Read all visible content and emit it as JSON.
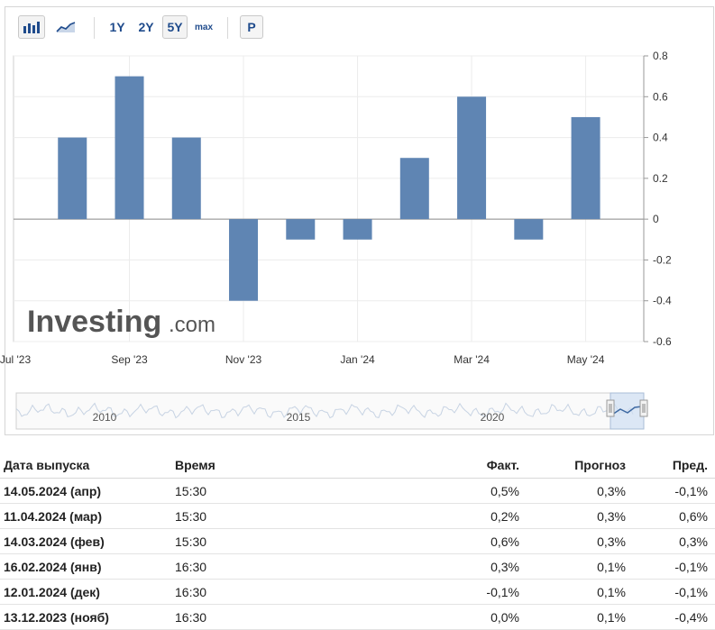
{
  "toolbar": {
    "periods": [
      "1Y",
      "2Y",
      "5Y",
      "max"
    ],
    "active_period": "5Y",
    "p_button": "P",
    "icons": [
      "bar-chart-icon",
      "area-chart-icon"
    ]
  },
  "watermark": {
    "brand": "Investing",
    "suffix": ".com"
  },
  "chart_data": {
    "type": "bar",
    "categories": [
      "Aug 2023",
      "Sep 2023",
      "Oct 2023",
      "Nov 2023",
      "Dec 2023",
      "Jan 2024",
      "Feb 2024",
      "Mar 2024",
      "Apr 2024",
      "May 2024"
    ],
    "values": [
      0.4,
      0.7,
      0.4,
      -0.4,
      -0.1,
      -0.1,
      0.3,
      0.6,
      -0.1,
      0.5
    ],
    "x_tick_labels": [
      "Jul '23",
      "Sep '23",
      "Nov '23",
      "Jan '24",
      "Mar '24",
      "May '24"
    ],
    "y_ticks": [
      0.8,
      0.6,
      0.4,
      0.2,
      0,
      -0.2,
      -0.4,
      -0.6
    ],
    "ylim": [
      -0.6,
      0.8
    ],
    "y_axis_side": "right",
    "bar_color": "#5f85b3",
    "grid": true,
    "legend": "none",
    "navigator_labels": [
      "2010",
      "2015",
      "2020"
    ]
  },
  "table": {
    "headers": [
      "Дата выпуска",
      "Время",
      "Факт.",
      "Прогноз",
      "Пред."
    ],
    "rows": [
      {
        "date": "14.05.2024 (апр)",
        "time": "15:30",
        "actual": "0,5%",
        "actual_trend": "pos",
        "forecast": "0,3%",
        "previous": "-0,1%",
        "previous_trend": "neg"
      },
      {
        "date": "11.04.2024 (мар)",
        "time": "15:30",
        "actual": "0,2%",
        "actual_trend": "neg",
        "forecast": "0,3%",
        "previous": "0,6%",
        "previous_trend": "neu"
      },
      {
        "date": "14.03.2024 (фев)",
        "time": "15:30",
        "actual": "0,6%",
        "actual_trend": "pos",
        "forecast": "0,3%",
        "previous": "0,3%",
        "previous_trend": "neu"
      },
      {
        "date": "16.02.2024 (янв)",
        "time": "16:30",
        "actual": "0,3%",
        "actual_trend": "pos",
        "forecast": "0,1%",
        "previous": "-0,1%",
        "previous_trend": "neu"
      },
      {
        "date": "12.01.2024 (дек)",
        "time": "16:30",
        "actual": "-0,1%",
        "actual_trend": "neg",
        "forecast": "0,1%",
        "previous": "-0,1%",
        "previous_trend": "neg"
      },
      {
        "date": "13.12.2023 (нояб)",
        "time": "16:30",
        "actual": "0,0%",
        "actual_trend": "neg",
        "forecast": "0,1%",
        "previous": "-0,4%",
        "previous_trend": "pos"
      }
    ]
  }
}
